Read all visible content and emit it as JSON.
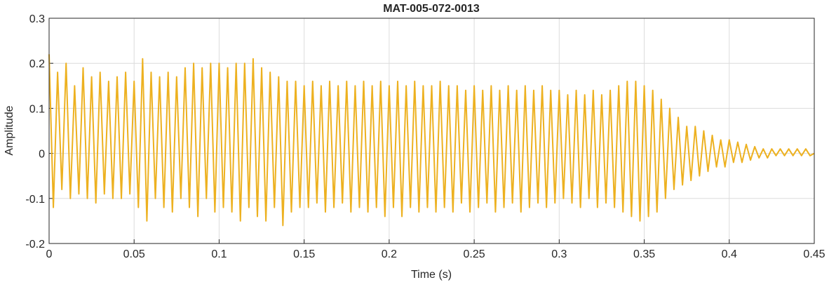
{
  "chart_data": {
    "type": "line",
    "title": "MAT-005-072-0013",
    "x_label": "Time (s)",
    "y_label": "Amplitude",
    "x": [
      0,
      0.0025,
      0.005,
      0.0075,
      0.01,
      0.0125,
      0.015,
      0.0175,
      0.02,
      0.0225,
      0.025,
      0.0275,
      0.03,
      0.0325,
      0.035,
      0.0375,
      0.04,
      0.0425,
      0.045,
      0.0475,
      0.05,
      0.0525,
      0.055,
      0.0575,
      0.06,
      0.0625,
      0.065,
      0.0675,
      0.07,
      0.0725,
      0.075,
      0.0775,
      0.08,
      0.0825,
      0.085,
      0.0875,
      0.09,
      0.0925,
      0.095,
      0.0975,
      0.1,
      0.1025,
      0.105,
      0.1075,
      0.11,
      0.1125,
      0.115,
      0.1175,
      0.12,
      0.1225,
      0.125,
      0.1275,
      0.13,
      0.1325,
      0.135,
      0.1375,
      0.14,
      0.1425,
      0.145,
      0.1475,
      0.15,
      0.1525,
      0.155,
      0.1575,
      0.16,
      0.1625,
      0.165,
      0.1675,
      0.17,
      0.1725,
      0.175,
      0.1775,
      0.18,
      0.1825,
      0.185,
      0.1875,
      0.19,
      0.1925,
      0.195,
      0.1975,
      0.2,
      0.2025,
      0.205,
      0.2075,
      0.21,
      0.2125,
      0.215,
      0.2175,
      0.22,
      0.2225,
      0.225,
      0.2275,
      0.23,
      0.2325,
      0.235,
      0.2375,
      0.24,
      0.2425,
      0.245,
      0.2475,
      0.25,
      0.2525,
      0.255,
      0.2575,
      0.26,
      0.2625,
      0.265,
      0.2675,
      0.27,
      0.2725,
      0.275,
      0.2775,
      0.28,
      0.2825,
      0.285,
      0.2875,
      0.29,
      0.2925,
      0.295,
      0.2975,
      0.3,
      0.3025,
      0.305,
      0.3075,
      0.31,
      0.3125,
      0.315,
      0.3175,
      0.32,
      0.3225,
      0.325,
      0.3275,
      0.33,
      0.3325,
      0.335,
      0.3375,
      0.34,
      0.3425,
      0.345,
      0.3475,
      0.35,
      0.3525,
      0.355,
      0.3575,
      0.36,
      0.3625,
      0.365,
      0.3675,
      0.37,
      0.3725,
      0.375,
      0.3775,
      0.38,
      0.3825,
      0.385,
      0.3875,
      0.39,
      0.3925,
      0.395,
      0.3975,
      0.4,
      0.4025,
      0.405,
      0.4075,
      0.41,
      0.4125,
      0.415,
      0.4175,
      0.42,
      0.4225,
      0.425,
      0.4275,
      0.43,
      0.4325,
      0.435,
      0.4375,
      0.44,
      0.4425,
      0.445,
      0.4475,
      0.45
    ],
    "series": [
      {
        "color": "#EDB120",
        "values": [
          0.22,
          -0.12,
          0.18,
          -0.08,
          0.2,
          -0.1,
          0.15,
          -0.09,
          0.19,
          -0.1,
          0.17,
          -0.11,
          0.18,
          -0.09,
          0.16,
          -0.1,
          0.17,
          -0.1,
          0.18,
          -0.09,
          0.16,
          -0.12,
          0.21,
          -0.15,
          0.18,
          -0.1,
          0.17,
          -0.12,
          0.18,
          -0.13,
          0.17,
          -0.1,
          0.19,
          -0.12,
          0.2,
          -0.14,
          0.19,
          -0.1,
          0.2,
          -0.13,
          0.2,
          -0.12,
          0.19,
          -0.13,
          0.2,
          -0.15,
          0.2,
          -0.12,
          0.21,
          -0.14,
          0.19,
          -0.15,
          0.18,
          -0.12,
          0.17,
          -0.16,
          0.16,
          -0.13,
          0.16,
          -0.12,
          0.15,
          -0.12,
          0.16,
          -0.11,
          0.15,
          -0.13,
          0.16,
          -0.12,
          0.15,
          -0.11,
          0.16,
          -0.13,
          0.15,
          -0.12,
          0.16,
          -0.13,
          0.15,
          -0.12,
          0.16,
          -0.14,
          0.15,
          -0.12,
          0.16,
          -0.14,
          0.15,
          -0.12,
          0.16,
          -0.13,
          0.15,
          -0.12,
          0.15,
          -0.13,
          0.16,
          -0.12,
          0.15,
          -0.13,
          0.15,
          -0.11,
          0.14,
          -0.13,
          0.15,
          -0.12,
          0.14,
          -0.11,
          0.15,
          -0.13,
          0.14,
          -0.12,
          0.15,
          -0.11,
          0.14,
          -0.13,
          0.15,
          -0.12,
          0.14,
          -0.11,
          0.15,
          -0.12,
          0.14,
          -0.11,
          0.14,
          -0.1,
          0.13,
          -0.11,
          0.14,
          -0.12,
          0.13,
          -0.1,
          0.14,
          -0.12,
          0.13,
          -0.11,
          0.14,
          -0.12,
          0.15,
          -0.13,
          0.16,
          -0.14,
          0.16,
          -0.15,
          0.15,
          -0.14,
          0.14,
          -0.13,
          0.12,
          -0.1,
          0.1,
          -0.08,
          0.08,
          -0.07,
          0.06,
          -0.06,
          0.06,
          -0.05,
          0.05,
          -0.04,
          0.04,
          -0.03,
          0.03,
          -0.03,
          0.03,
          -0.02,
          0.025,
          -0.02,
          0.02,
          -0.015,
          0.015,
          -0.01,
          0.01,
          -0.01,
          0.01,
          -0.005,
          0.01,
          -0.005,
          0.01,
          -0.005,
          0.01,
          -0.005,
          0.01,
          -0.005,
          0
        ]
      }
    ],
    "xlim": [
      0,
      0.45
    ],
    "xticks": [
      0,
      0.05,
      0.1,
      0.15,
      0.2,
      0.25,
      0.3,
      0.35,
      0.4,
      0.45
    ],
    "ylim": [
      -0.2,
      0.3
    ],
    "yticks": [
      -0.2,
      -0.1,
      0,
      0.1,
      0.2,
      0.3
    ],
    "grid": true
  }
}
